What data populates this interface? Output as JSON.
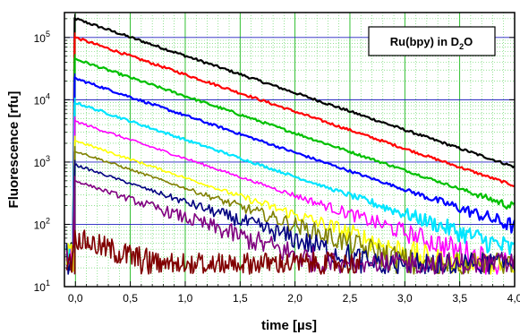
{
  "chart_data": {
    "type": "line",
    "title": "",
    "xlabel": "time [µs]",
    "ylabel": "Fluorescence [rfu]",
    "xlim": [
      -0.1,
      4.0
    ],
    "ylim_log10": [
      1,
      5.4
    ],
    "y_scale": "log",
    "x_ticks": [
      {
        "v": 0.0,
        "label": "0,0"
      },
      {
        "v": 0.5,
        "label": "0,5"
      },
      {
        "v": 1.0,
        "label": "1,0"
      },
      {
        "v": 1.5,
        "label": "1,5"
      },
      {
        "v": 2.0,
        "label": "2,0"
      },
      {
        "v": 2.5,
        "label": "2,5"
      },
      {
        "v": 3.0,
        "label": "3,0"
      },
      {
        "v": 3.5,
        "label": "3,5"
      },
      {
        "v": 4.0,
        "label": "4,0"
      }
    ],
    "y_ticks": [
      {
        "exp": 1,
        "base": "10",
        "sup": "1"
      },
      {
        "exp": 2,
        "base": "10",
        "sup": "2"
      },
      {
        "exp": 3,
        "base": "10",
        "sup": "3"
      },
      {
        "exp": 4,
        "base": "10",
        "sup": "4"
      },
      {
        "exp": 5,
        "base": "10",
        "sup": "5"
      }
    ],
    "grid": true,
    "legend_position": "top-right",
    "legend_box": {
      "main": "Ru(bpy) in D",
      "sub": "2",
      "tail": "O"
    },
    "noise_floor_log10": 1.2,
    "series": [
      {
        "color": "#000000",
        "peak": 200000,
        "x_end": 4.0
      },
      {
        "color": "#ff0000",
        "peak": 100000,
        "x_end": 4.0
      },
      {
        "color": "#00c000",
        "peak": 45000,
        "x_end": 4.0
      },
      {
        "color": "#0000ff",
        "peak": 22000,
        "x_end": 4.0
      },
      {
        "color": "#00e5ff",
        "peak": 9000,
        "x_end": 4.0
      },
      {
        "color": "#ff00ff",
        "peak": 4500,
        "x_end": 4.0
      },
      {
        "color": "#ffff00",
        "peak": 2200,
        "x_end": 4.0
      },
      {
        "color": "#808000",
        "peak": 1500,
        "x_end": 4.0
      },
      {
        "color": "#000080",
        "peak": 900,
        "x_end": 4.0
      },
      {
        "color": "#800080",
        "peak": 500,
        "x_end": 4.0
      },
      {
        "color": "#800000",
        "peak": 60,
        "x_end": 2.6
      }
    ],
    "decay_tau_us": 0.73
  }
}
